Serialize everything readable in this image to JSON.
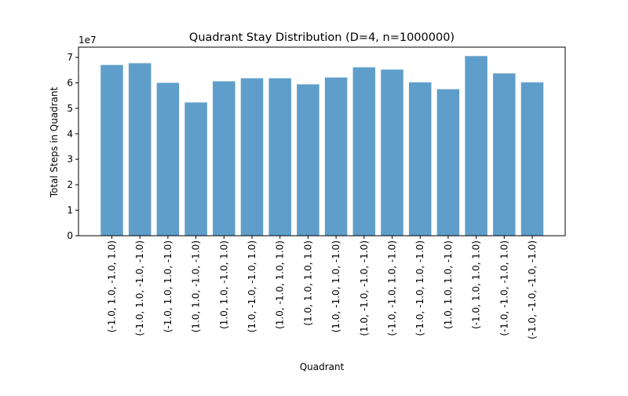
{
  "chart_data": {
    "type": "bar",
    "title": "Quadrant Stay Distribution (D=4, n=1000000)",
    "xlabel": "Quadrant",
    "ylabel": "Total Steps in Quadrant",
    "y_scale_label": "1e7",
    "ylim": [
      0,
      74000000
    ],
    "y_ticks": [
      0,
      10000000,
      20000000,
      30000000,
      40000000,
      50000000,
      60000000,
      70000000
    ],
    "y_tick_labels": [
      "0",
      "1",
      "2",
      "3",
      "4",
      "5",
      "6",
      "7"
    ],
    "grid": false,
    "legend": "none",
    "bar_color": "#5f9ecb",
    "categories": [
      "(-1.0, 1.0, -1.0, 1.0)",
      "(-1.0, 1.0, -1.0, -1.0)",
      "(-1.0, 1.0, 1.0, -1.0)",
      "(1.0, 1.0, -1.0, -1.0)",
      "(1.0, 1.0, -1.0, 1.0)",
      "(1.0, -1.0, -1.0, 1.0)",
      "(1.0, -1.0, 1.0, 1.0)",
      "(1.0, 1.0, 1.0, 1.0)",
      "(1.0, -1.0, 1.0, -1.0)",
      "(1.0, -1.0, -1.0, -1.0)",
      "(-1.0, -1.0, 1.0, -1.0)",
      "(-1.0, -1.0, 1.0, -1.0)",
      "(1.0, 1.0, 1.0, -1.0)",
      "(-1.0, 1.0, 1.0, 1.0)",
      "(-1.0, -1.0, -1.0, 1.0)",
      "(-1.0, -1.0, -1.0, -1.0)"
    ],
    "values": [
      67000000,
      67700000,
      60000000,
      52300000,
      60600000,
      61800000,
      61800000,
      59400000,
      62100000,
      66100000,
      65200000,
      60200000,
      57500000,
      70500000,
      63700000,
      60200000
    ]
  }
}
